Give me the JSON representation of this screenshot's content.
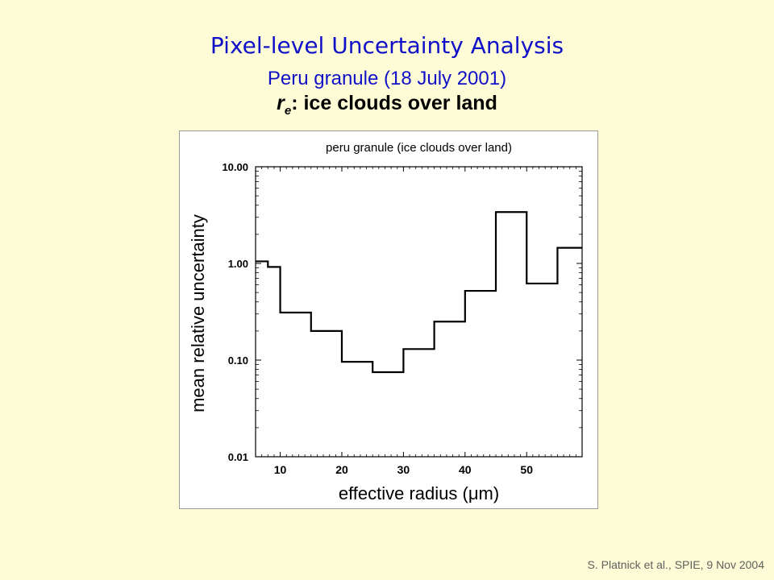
{
  "slide": {
    "title": "Pixel-level Uncertainty Analysis",
    "subtitle": "Peru granule (18 July 2001)",
    "subtitle2_main": "r",
    "subtitle2_sub": "e",
    "subtitle2_rest": ": ice clouds over land",
    "credit": "S. Platnick et al., SPIE, 9 Nov  2004"
  },
  "chart_data": {
    "type": "line",
    "style": "step-histogram",
    "title": "peru granule (ice clouds over land)",
    "xlabel": "effective radius (μm)",
    "ylabel": "mean relative uncertainty",
    "xlim": [
      6,
      59
    ],
    "ylim": [
      0.01,
      10.0
    ],
    "yscale": "log",
    "xticks": [
      10,
      20,
      30,
      40,
      50
    ],
    "yticks": [
      {
        "value": 0.01,
        "label": "0.01"
      },
      {
        "value": 0.1,
        "label": "0.10"
      },
      {
        "value": 1.0,
        "label": "1.00"
      },
      {
        "value": 10.0,
        "label": "10.00"
      }
    ],
    "grid": false,
    "bins": [
      {
        "x0": 6,
        "x1": 8,
        "value": 1.05
      },
      {
        "x0": 8,
        "x1": 10,
        "value": 0.92
      },
      {
        "x0": 10,
        "x1": 15,
        "value": 0.31
      },
      {
        "x0": 15,
        "x1": 20,
        "value": 0.2
      },
      {
        "x0": 20,
        "x1": 25,
        "value": 0.096
      },
      {
        "x0": 25,
        "x1": 30,
        "value": 0.075
      },
      {
        "x0": 30,
        "x1": 35,
        "value": 0.13
      },
      {
        "x0": 35,
        "x1": 40,
        "value": 0.25
      },
      {
        "x0": 40,
        "x1": 45,
        "value": 0.52
      },
      {
        "x0": 45,
        "x1": 50,
        "value": 3.4
      },
      {
        "x0": 50,
        "x1": 55,
        "value": 0.62
      },
      {
        "x0": 55,
        "x1": 59,
        "value": 1.45
      }
    ]
  }
}
